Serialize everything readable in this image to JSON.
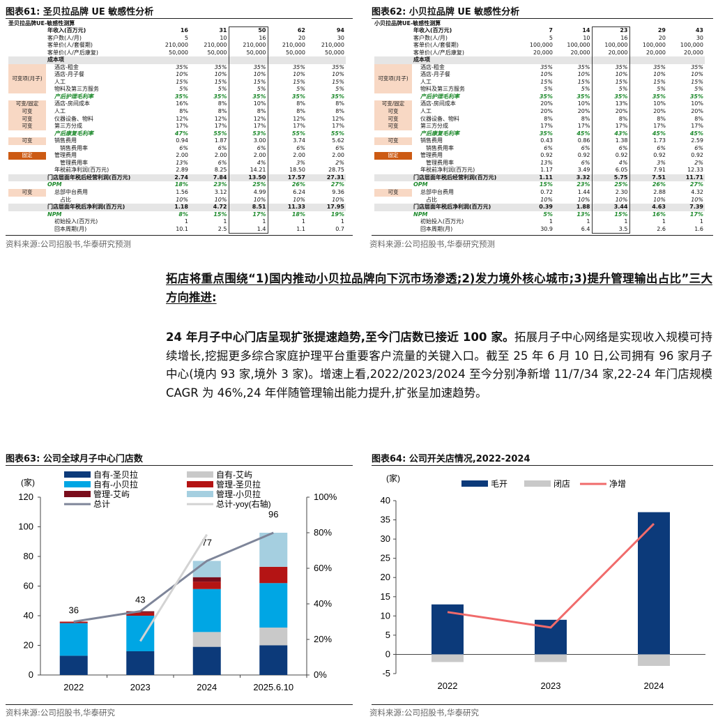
{
  "fig61": {
    "title": "图表61:  圣贝拉品牌 UE 敏感性分析",
    "caption": "圣贝拉品牌UE-敏感性测算",
    "source": "资料来源:公司招股书,华泰研究预测",
    "rows": [
      {
        "label": "年收入(百万元)",
        "tag": "",
        "v": [
          "16",
          "31",
          "50",
          "62",
          "94"
        ],
        "style": "bold"
      },
      {
        "label": "客户数(人/月)",
        "tag": "",
        "v": [
          "5",
          "10",
          "16",
          "20",
          "30"
        ],
        "style": ""
      },
      {
        "label": "客单价(人/套餐期)",
        "tag": "",
        "v": [
          "210,000",
          "210,000",
          "210,000",
          "210,000",
          "210,000"
        ],
        "style": ""
      },
      {
        "label": "客单价(人/产后康复)",
        "tag": "",
        "v": [
          "50,000",
          "50,000",
          "50,000",
          "50,000",
          "50,000"
        ],
        "style": ""
      },
      {
        "label": "成本项",
        "tag": "",
        "v": [
          "",
          "",
          "",
          "",
          ""
        ],
        "style": "bold hl"
      },
      {
        "label": "酒店-租金",
        "tag": "",
        "v": [
          "35%",
          "35%",
          "35%",
          "35%",
          "35%"
        ],
        "style": "itl sub"
      },
      {
        "label": "酒店-月子餐",
        "tag": "可变项(月子)",
        "v": [
          "10%",
          "10%",
          "10%",
          "10%",
          "10%"
        ],
        "style": "itl sub"
      },
      {
        "label": "人工",
        "tag": "",
        "v": [
          "15%",
          "15%",
          "15%",
          "15%",
          "15%"
        ],
        "style": "itl sub"
      },
      {
        "label": "物料及第三方服务",
        "tag": "",
        "v": [
          "5%",
          "5%",
          "5%",
          "5%",
          "5%"
        ],
        "style": "itl sub"
      },
      {
        "label": "产后护理毛利率",
        "tag": "",
        "v": [
          "35%",
          "35%",
          "35%",
          "35%",
          "35%"
        ],
        "style": "grn sub"
      },
      {
        "label": "酒店-房间成本",
        "tag": "可变/固定",
        "v": [
          "16%",
          "8%",
          "10%",
          "8%",
          "8%"
        ],
        "style": "sub"
      },
      {
        "label": "人工",
        "tag": "可变",
        "v": [
          "8%",
          "8%",
          "8%",
          "8%",
          "8%"
        ],
        "style": "sub"
      },
      {
        "label": "仪器设备、物料",
        "tag": "可变",
        "v": [
          "12%",
          "12%",
          "12%",
          "12%",
          "12%"
        ],
        "style": "sub"
      },
      {
        "label": "第三方分成",
        "tag": "可变",
        "v": [
          "17%",
          "17%",
          "17%",
          "17%",
          "17%"
        ],
        "style": "sub"
      },
      {
        "label": "产后康复毛利率",
        "tag": "",
        "v": [
          "47%",
          "55%",
          "53%",
          "55%",
          "55%"
        ],
        "style": "grn sub"
      },
      {
        "label": "销售费用",
        "tag": "可变",
        "v": [
          "0.94",
          "1.87",
          "3.00",
          "3.74",
          "5.62"
        ],
        "style": "sub"
      },
      {
        "label": "销售费用率",
        "tag": "",
        "v": [
          "6%",
          "6%",
          "6%",
          "6%",
          "6%"
        ],
        "style": "itl sub2"
      },
      {
        "label": "管理费用",
        "tag": "固定",
        "v": [
          "2.00",
          "2.00",
          "2.00",
          "2.00",
          "2.00"
        ],
        "style": "sub"
      },
      {
        "label": "管理费用率",
        "tag": "",
        "v": [
          "13%",
          "6%",
          "4%",
          "3%",
          "2%"
        ],
        "style": "itl sub2"
      },
      {
        "label": "年税前净利润(百万元)",
        "tag": "",
        "v": [
          "2.89",
          "8.25",
          "14.21",
          "18.50",
          "28.75"
        ],
        "style": "sub"
      },
      {
        "label": "门店层面年税后经营利润(百万元)",
        "tag": "",
        "v": [
          "2.74",
          "7.84",
          "13.50",
          "17.57",
          "27.31"
        ],
        "style": "bold hl"
      },
      {
        "label": "OPM",
        "tag": "",
        "v": [
          "18%",
          "23%",
          "25%",
          "26%",
          "27%"
        ],
        "style": "grn"
      },
      {
        "label": "总部中台费用",
        "tag": "可变",
        "v": [
          "1.56",
          "3.12",
          "4.99",
          "6.24",
          "9.36"
        ],
        "style": "sub"
      },
      {
        "label": "占比",
        "tag": "",
        "v": [
          "10%",
          "10%",
          "10%",
          "10%",
          "10%"
        ],
        "style": "itl sub2"
      },
      {
        "label": "门店层面年税后净利润(百万元)",
        "tag": "",
        "v": [
          "1.18",
          "4.72",
          "8.51",
          "11.33",
          "17.95"
        ],
        "style": "bold hl"
      },
      {
        "label": "NPM",
        "tag": "",
        "v": [
          "8%",
          "15%",
          "17%",
          "18%",
          "19%"
        ],
        "style": "grn"
      },
      {
        "label": "初始投入(百万元)",
        "tag": "",
        "v": [
          "1",
          "1",
          "1",
          "1",
          "1"
        ],
        "style": "sub"
      },
      {
        "label": "回本周期(月)",
        "tag": "",
        "v": [
          "10.1",
          "2.5",
          "1.4",
          "1.1",
          "0.7"
        ],
        "style": "sub"
      }
    ]
  },
  "fig62": {
    "title": "图表62:  小贝拉品牌 UE 敏感性分析",
    "caption": "小贝拉品牌UE-敏感性测算",
    "source": "资料来源:公司招股书,华泰研究预测",
    "rows": [
      {
        "label": "年收入(百万元)",
        "tag": "",
        "v": [
          "7",
          "14",
          "23",
          "29",
          "43"
        ],
        "style": "bold"
      },
      {
        "label": "客户数(人/月)",
        "tag": "",
        "v": [
          "5",
          "10",
          "16",
          "20",
          "30"
        ],
        "style": ""
      },
      {
        "label": "客单价(人/套餐期)",
        "tag": "",
        "v": [
          "100,000",
          "100,000",
          "100,000",
          "100,000",
          "100,000"
        ],
        "style": ""
      },
      {
        "label": "客单价(人/产后康复)",
        "tag": "",
        "v": [
          "20,000",
          "20,000",
          "20,000",
          "20,000",
          "20,000"
        ],
        "style": ""
      },
      {
        "label": "成本项",
        "tag": "",
        "v": [
          "",
          "",
          "",
          "",
          ""
        ],
        "style": "bold hl"
      },
      {
        "label": "酒店-租金",
        "tag": "",
        "v": [
          "35%",
          "35%",
          "35%",
          "35%",
          "35%"
        ],
        "style": "itl sub"
      },
      {
        "label": "酒店-月子餐",
        "tag": "可变项(月子)",
        "v": [
          "10%",
          "10%",
          "10%",
          "10%",
          "10%"
        ],
        "style": "itl sub"
      },
      {
        "label": "人工",
        "tag": "",
        "v": [
          "15%",
          "15%",
          "15%",
          "15%",
          "15%"
        ],
        "style": "itl sub"
      },
      {
        "label": "物料及第三方服务",
        "tag": "",
        "v": [
          "5%",
          "5%",
          "5%",
          "5%",
          "5%"
        ],
        "style": "itl sub"
      },
      {
        "label": "产后护理毛利率",
        "tag": "",
        "v": [
          "35%",
          "35%",
          "35%",
          "35%",
          "35%"
        ],
        "style": "grn sub"
      },
      {
        "label": "酒店-房间成本",
        "tag": "可变/固定",
        "v": [
          "20%",
          "10%",
          "13%",
          "10%",
          "10%"
        ],
        "style": "sub"
      },
      {
        "label": "人工",
        "tag": "可变",
        "v": [
          "20%",
          "20%",
          "20%",
          "20%",
          "20%"
        ],
        "style": "sub"
      },
      {
        "label": "仪器设备、物料",
        "tag": "可变",
        "v": [
          "8%",
          "8%",
          "8%",
          "8%",
          "8%"
        ],
        "style": "sub"
      },
      {
        "label": "第三方分成",
        "tag": "可变",
        "v": [
          "17%",
          "17%",
          "17%",
          "17%",
          "17%"
        ],
        "style": "sub"
      },
      {
        "label": "产后康复毛利率",
        "tag": "",
        "v": [
          "35%",
          "45%",
          "43%",
          "45%",
          "45%"
        ],
        "style": "grn sub"
      },
      {
        "label": "销售费用",
        "tag": "可变",
        "v": [
          "0.43",
          "0.86",
          "1.38",
          "1.73",
          "2.59"
        ],
        "style": "sub"
      },
      {
        "label": "销售费用率",
        "tag": "",
        "v": [
          "6%",
          "6%",
          "6%",
          "6%",
          "6%"
        ],
        "style": "itl sub2"
      },
      {
        "label": "管理费用",
        "tag": "固定",
        "v": [
          "0.92",
          "0.92",
          "0.92",
          "0.92",
          "0.92"
        ],
        "style": "sub"
      },
      {
        "label": "管理费用率",
        "tag": "",
        "v": [
          "13%",
          "6%",
          "4%",
          "3%",
          "2%"
        ],
        "style": "itl sub2"
      },
      {
        "label": "年税前净利润(百万元)",
        "tag": "",
        "v": [
          "1.17",
          "3.49",
          "6.05",
          "7.91",
          "12.33"
        ],
        "style": "sub"
      },
      {
        "label": "门店层面年税后经营利润(百万元)",
        "tag": "",
        "v": [
          "1.11",
          "3.32",
          "5.75",
          "7.51",
          "11.71"
        ],
        "style": "bold hl"
      },
      {
        "label": "OPM",
        "tag": "",
        "v": [
          "15%",
          "23%",
          "25%",
          "26%",
          "27%"
        ],
        "style": "grn"
      },
      {
        "label": "总部中台费用",
        "tag": "可变",
        "v": [
          "0.72",
          "1.44",
          "2.30",
          "2.88",
          "4.32"
        ],
        "style": "sub"
      },
      {
        "label": "占比",
        "tag": "",
        "v": [
          "10%",
          "10%",
          "10%",
          "10%",
          "10%"
        ],
        "style": "itl sub2"
      },
      {
        "label": "门店层面年税后净利润(百万元)",
        "tag": "",
        "v": [
          "0.39",
          "1.88",
          "3.44",
          "4.63",
          "7.39"
        ],
        "style": "bold hl"
      },
      {
        "label": "NPM",
        "tag": "",
        "v": [
          "5%",
          "13%",
          "15%",
          "16%",
          "17%"
        ],
        "style": "grn"
      },
      {
        "label": "初始投入(百万元)",
        "tag": "",
        "v": [
          "1",
          "1",
          "1",
          "1",
          "1"
        ],
        "style": "sub"
      },
      {
        "label": "回本周期(月)",
        "tag": "",
        "v": [
          "30.9",
          "6.4",
          "3.5",
          "2.6",
          "1.6"
        ],
        "style": "sub"
      }
    ]
  },
  "text": {
    "heading": "拓店将重点围绕“1)国内推动小贝拉品牌向下沉市场渗透;2)发力境外核心城市;3)提升管理输出占比”三大方向推进:",
    "para_bold": "24 年月子中心门店呈现扩张提速趋势,至今门店数已接近 100 家。",
    "para_rest": "拓展月子中心网络是实现收入规模可持续增长,挖掘更多综合家庭护理平台重要客户流量的关键入口。截至 25 年 6 月 10 日,公司拥有 96 家月子中心(境内 93 家,境外 3 家)。增速上看,2022/2023/2024 至今分别净新增 11/7/34 家,22-24 年门店规模 CAGR 为 46%,24 年伴随管理输出能力提升,扩张呈加速趋势。"
  },
  "fig63": {
    "title": "图表63:  公司全球月子中心门店数",
    "source": "资料来源:公司招股书,华泰研究"
  },
  "fig64": {
    "title": "图表64:  公司开关店情况,2022-2024",
    "source": "资料来源:公司招股书,华泰研究"
  },
  "colors": {
    "navy": "#0c3a7a",
    "cyan": "#00a6e4",
    "gray": "#c9c9c9",
    "red": "#b41414",
    "darkred": "#7a0d1c",
    "lightblue": "#a5cfe0",
    "total": "#7e8599",
    "yoy": "#d3d3d3",
    "net": "#f06b6b"
  },
  "chart_data": [
    {
      "type": "bar",
      "stacked": true,
      "unit": "(家)",
      "categories": [
        "2022",
        "2023",
        "2024",
        "2025.6.10"
      ],
      "series": [
        {
          "name": "自有-圣贝拉",
          "values": [
            13,
            16,
            19,
            20
          ]
        },
        {
          "name": "自有-艾屿",
          "values": [
            0,
            0,
            10,
            12
          ]
        },
        {
          "name": "自有-小贝拉",
          "values": [
            22,
            24,
            29,
            30
          ]
        },
        {
          "name": "管理-圣贝拉",
          "values": [
            1,
            2,
            5,
            11
          ]
        },
        {
          "name": "管理-艾屿",
          "values": [
            0,
            1,
            3,
            0
          ]
        },
        {
          "name": "管理-小贝拉",
          "values": [
            0,
            0,
            11,
            23
          ]
        }
      ],
      "line_series": [
        {
          "name": "总计",
          "axis": "left",
          "values": [
            36,
            43,
            77,
            96
          ]
        },
        {
          "name": "总计-yoy(右轴)",
          "axis": "right",
          "values": [
            null,
            19,
            79,
            null
          ]
        }
      ],
      "total_labels": [
        "36",
        "43",
        "77",
        "96"
      ],
      "ylim": [
        0,
        120
      ],
      "yticks": [
        "0",
        "20",
        "40",
        "60",
        "80",
        "100",
        "120"
      ],
      "y2lim": [
        0,
        100
      ],
      "y2ticks": [
        "0%",
        "20%",
        "40%",
        "60%",
        "80%",
        "100%"
      ],
      "legend": "top"
    },
    {
      "type": "bar",
      "unit": "(家)",
      "categories": [
        "2022",
        "2023",
        "2024"
      ],
      "series": [
        {
          "name": "毛开",
          "values": [
            13,
            9,
            37
          ]
        },
        {
          "name": "闭店",
          "values": [
            -2,
            -2,
            -3
          ]
        }
      ],
      "line_series": [
        {
          "name": "净增",
          "values": [
            11,
            7,
            34
          ]
        }
      ],
      "ylim": [
        -5,
        40
      ],
      "yticks": [
        "-5",
        "0",
        "5",
        "10",
        "15",
        "20",
        "25",
        "30",
        "35",
        "40"
      ],
      "legend": "top"
    }
  ]
}
